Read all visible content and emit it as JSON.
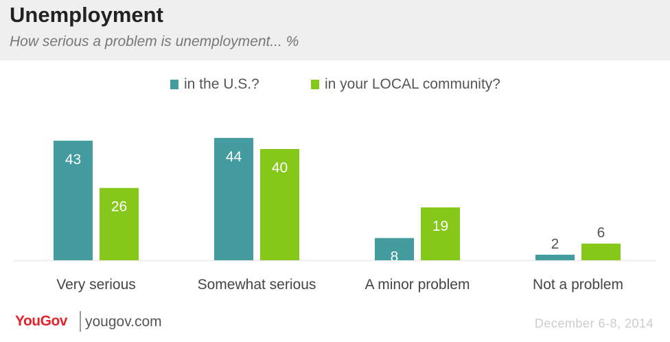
{
  "header": {
    "title": "Unemployment",
    "subtitle": "How serious a problem is unemployment... %"
  },
  "legend": {
    "items": [
      {
        "label": "in the U.S.?",
        "color": "#459C9F"
      },
      {
        "label": "in your LOCAL community?",
        "color": "#85C81A"
      }
    ]
  },
  "footer": {
    "brand": "YouGov",
    "brand_you": "You",
    "brand_gov": "Gov",
    "brand_color": "#E3222A",
    "site": "yougov.com",
    "date": "December 6-8, 2014"
  },
  "chart_data": {
    "type": "bar",
    "title": "Unemployment",
    "subtitle": "How serious a problem is unemployment... %",
    "categories": [
      "Very serious",
      "Somewhat serious",
      "A minor problem",
      "Not a problem"
    ],
    "series": [
      {
        "name": "in the U.S.?",
        "values": [
          43,
          44,
          8,
          2
        ],
        "color": "#459C9F"
      },
      {
        "name": "in your LOCAL community?",
        "values": [
          26,
          40,
          19,
          6
        ],
        "color": "#85C81A"
      }
    ],
    "ylim": [
      0,
      45
    ],
    "grid": false,
    "legend": "top-center"
  }
}
